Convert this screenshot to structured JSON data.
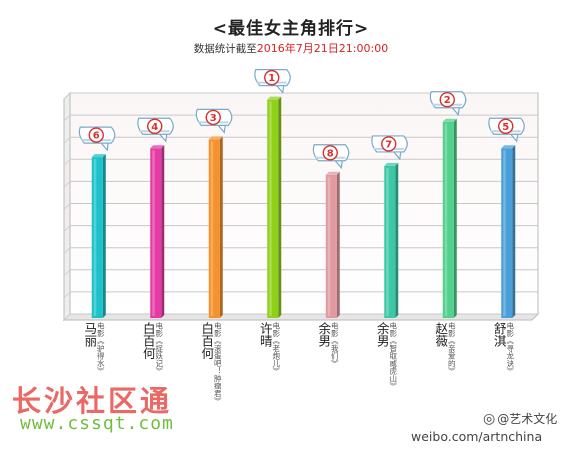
{
  "header": {
    "title": "<最佳女主角排行>",
    "subtitle_prefix": "数据统计截至",
    "subtitle_date": "2016年7月21日21:00:00"
  },
  "chart_data": {
    "type": "bar",
    "title": "<最佳女主角排行>",
    "xlabel": "",
    "ylabel": "",
    "ylim": [
      0,
      100
    ],
    "grid": true,
    "categories": [
      {
        "rank": "6",
        "name": "马丽",
        "film": "电影《驴得水》"
      },
      {
        "rank": "4",
        "name": "白百何",
        "film": "电影《捉妖记》"
      },
      {
        "rank": "3",
        "name": "白百何",
        "film": "电影《滚蛋吧！肿瘤君》"
      },
      {
        "rank": "1",
        "name": "许晴",
        "film": "电影《老炮儿》"
      },
      {
        "rank": "8",
        "name": "余男",
        "film": "电影《我们》"
      },
      {
        "rank": "7",
        "name": "余男",
        "film": "电影《智取威虎山》"
      },
      {
        "rank": "2",
        "name": "赵薇",
        "film": "电影《亲爱的》"
      },
      {
        "rank": "5",
        "name": "舒淇",
        "film": "电影《寻龙诀》"
      }
    ],
    "values": [
      71,
      75,
      79,
      97,
      63,
      67,
      87,
      75
    ],
    "colors": [
      "#1cc2c8",
      "#e53ba4",
      "#f5922e",
      "#8fd11a",
      "#e09aa0",
      "#3cc7a5",
      "#52d08c",
      "#4a9fd8"
    ]
  },
  "watermarks": {
    "site_name": "长沙社区通",
    "site_url": "www.cssqt.com",
    "weibo_handle": "@艺术文化",
    "weibo_url": "weibo.com/artnchina"
  }
}
